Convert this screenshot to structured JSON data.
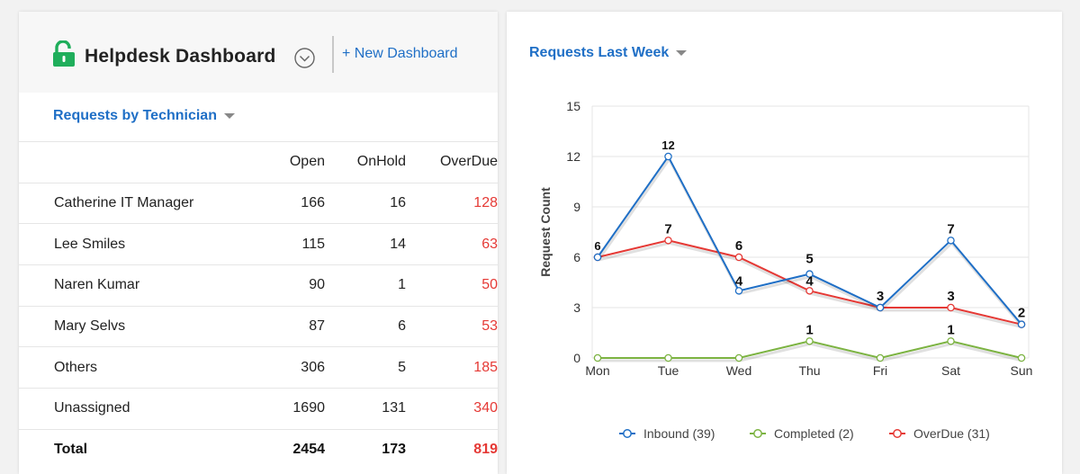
{
  "header": {
    "title": "Helpdesk Dashboard",
    "new_dashboard": "+ New Dashboard"
  },
  "technician_widget": {
    "title": "Requests by Technician",
    "columns": [
      "Open",
      "OnHold",
      "OverDue"
    ],
    "rows": [
      {
        "name": "Catherine IT Manager",
        "open": "166",
        "onhold": "16",
        "overdue": "128"
      },
      {
        "name": "Lee Smiles",
        "open": "115",
        "onhold": "14",
        "overdue": "63"
      },
      {
        "name": "Naren Kumar",
        "open": "90",
        "onhold": "1",
        "overdue": "50"
      },
      {
        "name": "Mary Selvs",
        "open": "87",
        "onhold": "6",
        "overdue": "53"
      },
      {
        "name": "Others",
        "open": "306",
        "onhold": "5",
        "overdue": "185"
      },
      {
        "name": "Unassigned",
        "open": "1690",
        "onhold": "131",
        "overdue": "340"
      },
      {
        "name": "Total",
        "open": "2454",
        "onhold": "173",
        "overdue": "819"
      }
    ],
    "overdue_color": "#e53935"
  },
  "week_widget": {
    "title": "Requests Last Week"
  },
  "chart_data": {
    "type": "line",
    "categories": [
      "Mon",
      "Tue",
      "Wed",
      "Thu",
      "Fri",
      "Sat",
      "Sun"
    ],
    "ylabel": "Request Count",
    "ylim": [
      0,
      15
    ],
    "yticks": [
      0,
      3,
      6,
      9,
      12,
      15
    ],
    "grid": true,
    "legend_position": "bottom",
    "series": [
      {
        "name": "Inbound (39)",
        "color": "#1f6fc6",
        "values": [
          6,
          12,
          4,
          5,
          3,
          7,
          2
        ],
        "labels": [
          "6",
          "12",
          "4",
          "5",
          "",
          "7",
          ""
        ]
      },
      {
        "name": "Completed (2)",
        "color": "#7cb342",
        "values": [
          0,
          0,
          0,
          1,
          0,
          1,
          0
        ],
        "labels": [
          "",
          "",
          "",
          "1",
          "",
          "1",
          ""
        ]
      },
      {
        "name": "OverDue (31)",
        "color": "#e53935",
        "values": [
          6,
          7,
          6,
          4,
          3,
          3,
          2
        ],
        "labels": [
          "",
          "7",
          "6",
          "4",
          "3",
          "3",
          "2"
        ]
      }
    ]
  }
}
